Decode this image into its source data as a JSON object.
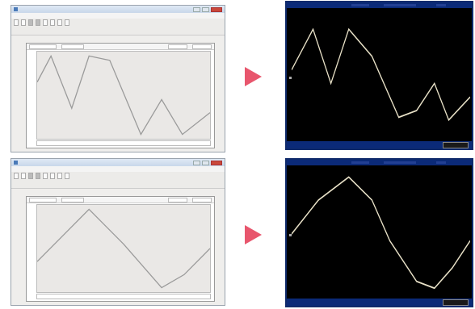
{
  "panels": [
    {
      "editor": {
        "title": "",
        "menu": [
          "",
          "",
          "",
          "",
          ""
        ],
        "toolbar": [
          "",
          "",
          "",
          "",
          "",
          "",
          "",
          ""
        ],
        "y_labels": [
          "",
          "",
          ""
        ]
      },
      "waveform": {
        "shape": "double-peak",
        "points": [
          [
            0,
            0.35
          ],
          [
            0.08,
            0.05
          ],
          [
            0.2,
            0.65
          ],
          [
            0.3,
            0.05
          ],
          [
            0.42,
            0.1
          ],
          [
            0.6,
            0.95
          ],
          [
            0.72,
            0.55
          ],
          [
            0.84,
            0.95
          ],
          [
            1,
            0.7
          ]
        ]
      },
      "scope_waveform": {
        "points": [
          [
            0,
            0.45
          ],
          [
            0.12,
            0.15
          ],
          [
            0.22,
            0.55
          ],
          [
            0.32,
            0.15
          ],
          [
            0.45,
            0.35
          ],
          [
            0.6,
            0.8
          ],
          [
            0.7,
            0.75
          ],
          [
            0.8,
            0.55
          ],
          [
            0.88,
            0.82
          ],
          [
            1,
            0.65
          ]
        ]
      }
    },
    {
      "editor": {
        "title": "",
        "menu": [
          "",
          "",
          "",
          "",
          ""
        ],
        "toolbar": [
          "",
          "",
          "",
          "",
          "",
          "",
          "",
          ""
        ],
        "y_labels": [
          "",
          "",
          ""
        ]
      },
      "waveform": {
        "shape": "single-peak",
        "points": [
          [
            0,
            0.65
          ],
          [
            0.15,
            0.35
          ],
          [
            0.3,
            0.05
          ],
          [
            0.5,
            0.45
          ],
          [
            0.72,
            0.95
          ],
          [
            0.85,
            0.8
          ],
          [
            1,
            0.5
          ]
        ]
      },
      "scope_waveform": {
        "points": [
          [
            0,
            0.5
          ],
          [
            0.15,
            0.25
          ],
          [
            0.32,
            0.08
          ],
          [
            0.45,
            0.25
          ],
          [
            0.55,
            0.55
          ],
          [
            0.7,
            0.85
          ],
          [
            0.8,
            0.9
          ],
          [
            0.9,
            0.75
          ],
          [
            1,
            0.55
          ]
        ]
      }
    }
  ],
  "colors": {
    "arrow": "#e8566d",
    "trace_editor": "#9a9a9a",
    "trace_scope": "#e9e2c8"
  }
}
